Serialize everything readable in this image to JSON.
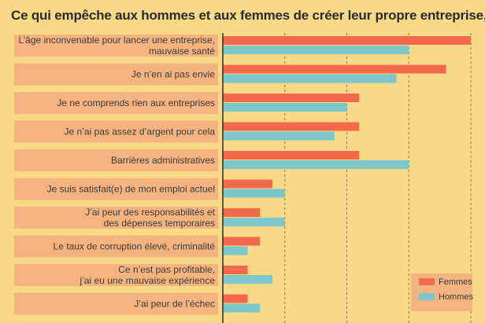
{
  "chart_data": {
    "type": "bar",
    "orientation": "horizontal",
    "title": "Ce qui empêche aux hommes et aux femmes de créer leur propre entreprise, %",
    "categories": [
      [
        "L’âge inconvenable pour lancer une entreprise,",
        "mauvaise santé"
      ],
      [
        "Je n’en ai pas envie"
      ],
      [
        "Je ne comprends rien aux entreprises"
      ],
      [
        "Je n’ai pas assez d’argent pour cela"
      ],
      [
        "Barrières administratives"
      ],
      [
        "Je suis satisfait(e) de mon emploi actuel"
      ],
      [
        "J’ai peur des responsabilités et",
        "des dépenses temporaires"
      ],
      [
        "Le taux de corruption élevé, criminalité"
      ],
      [
        "Ce n’est pas profitable,",
        "j’ai eu une mauvaise expérience"
      ],
      [
        "J’ai peur de l’échec"
      ]
    ],
    "series": [
      {
        "name": "Femmes",
        "color": "#f26a4b",
        "values": [
          20,
          18,
          11,
          11,
          11,
          4,
          3,
          3,
          2,
          2
        ]
      },
      {
        "name": "Hommes",
        "color": "#7cc7c9",
        "values": [
          15,
          14,
          10,
          9,
          15,
          5,
          5,
          2,
          4,
          3
        ]
      }
    ],
    "xlim": [
      0,
      20
    ],
    "grid": true,
    "legend_position": "bottom-right"
  }
}
